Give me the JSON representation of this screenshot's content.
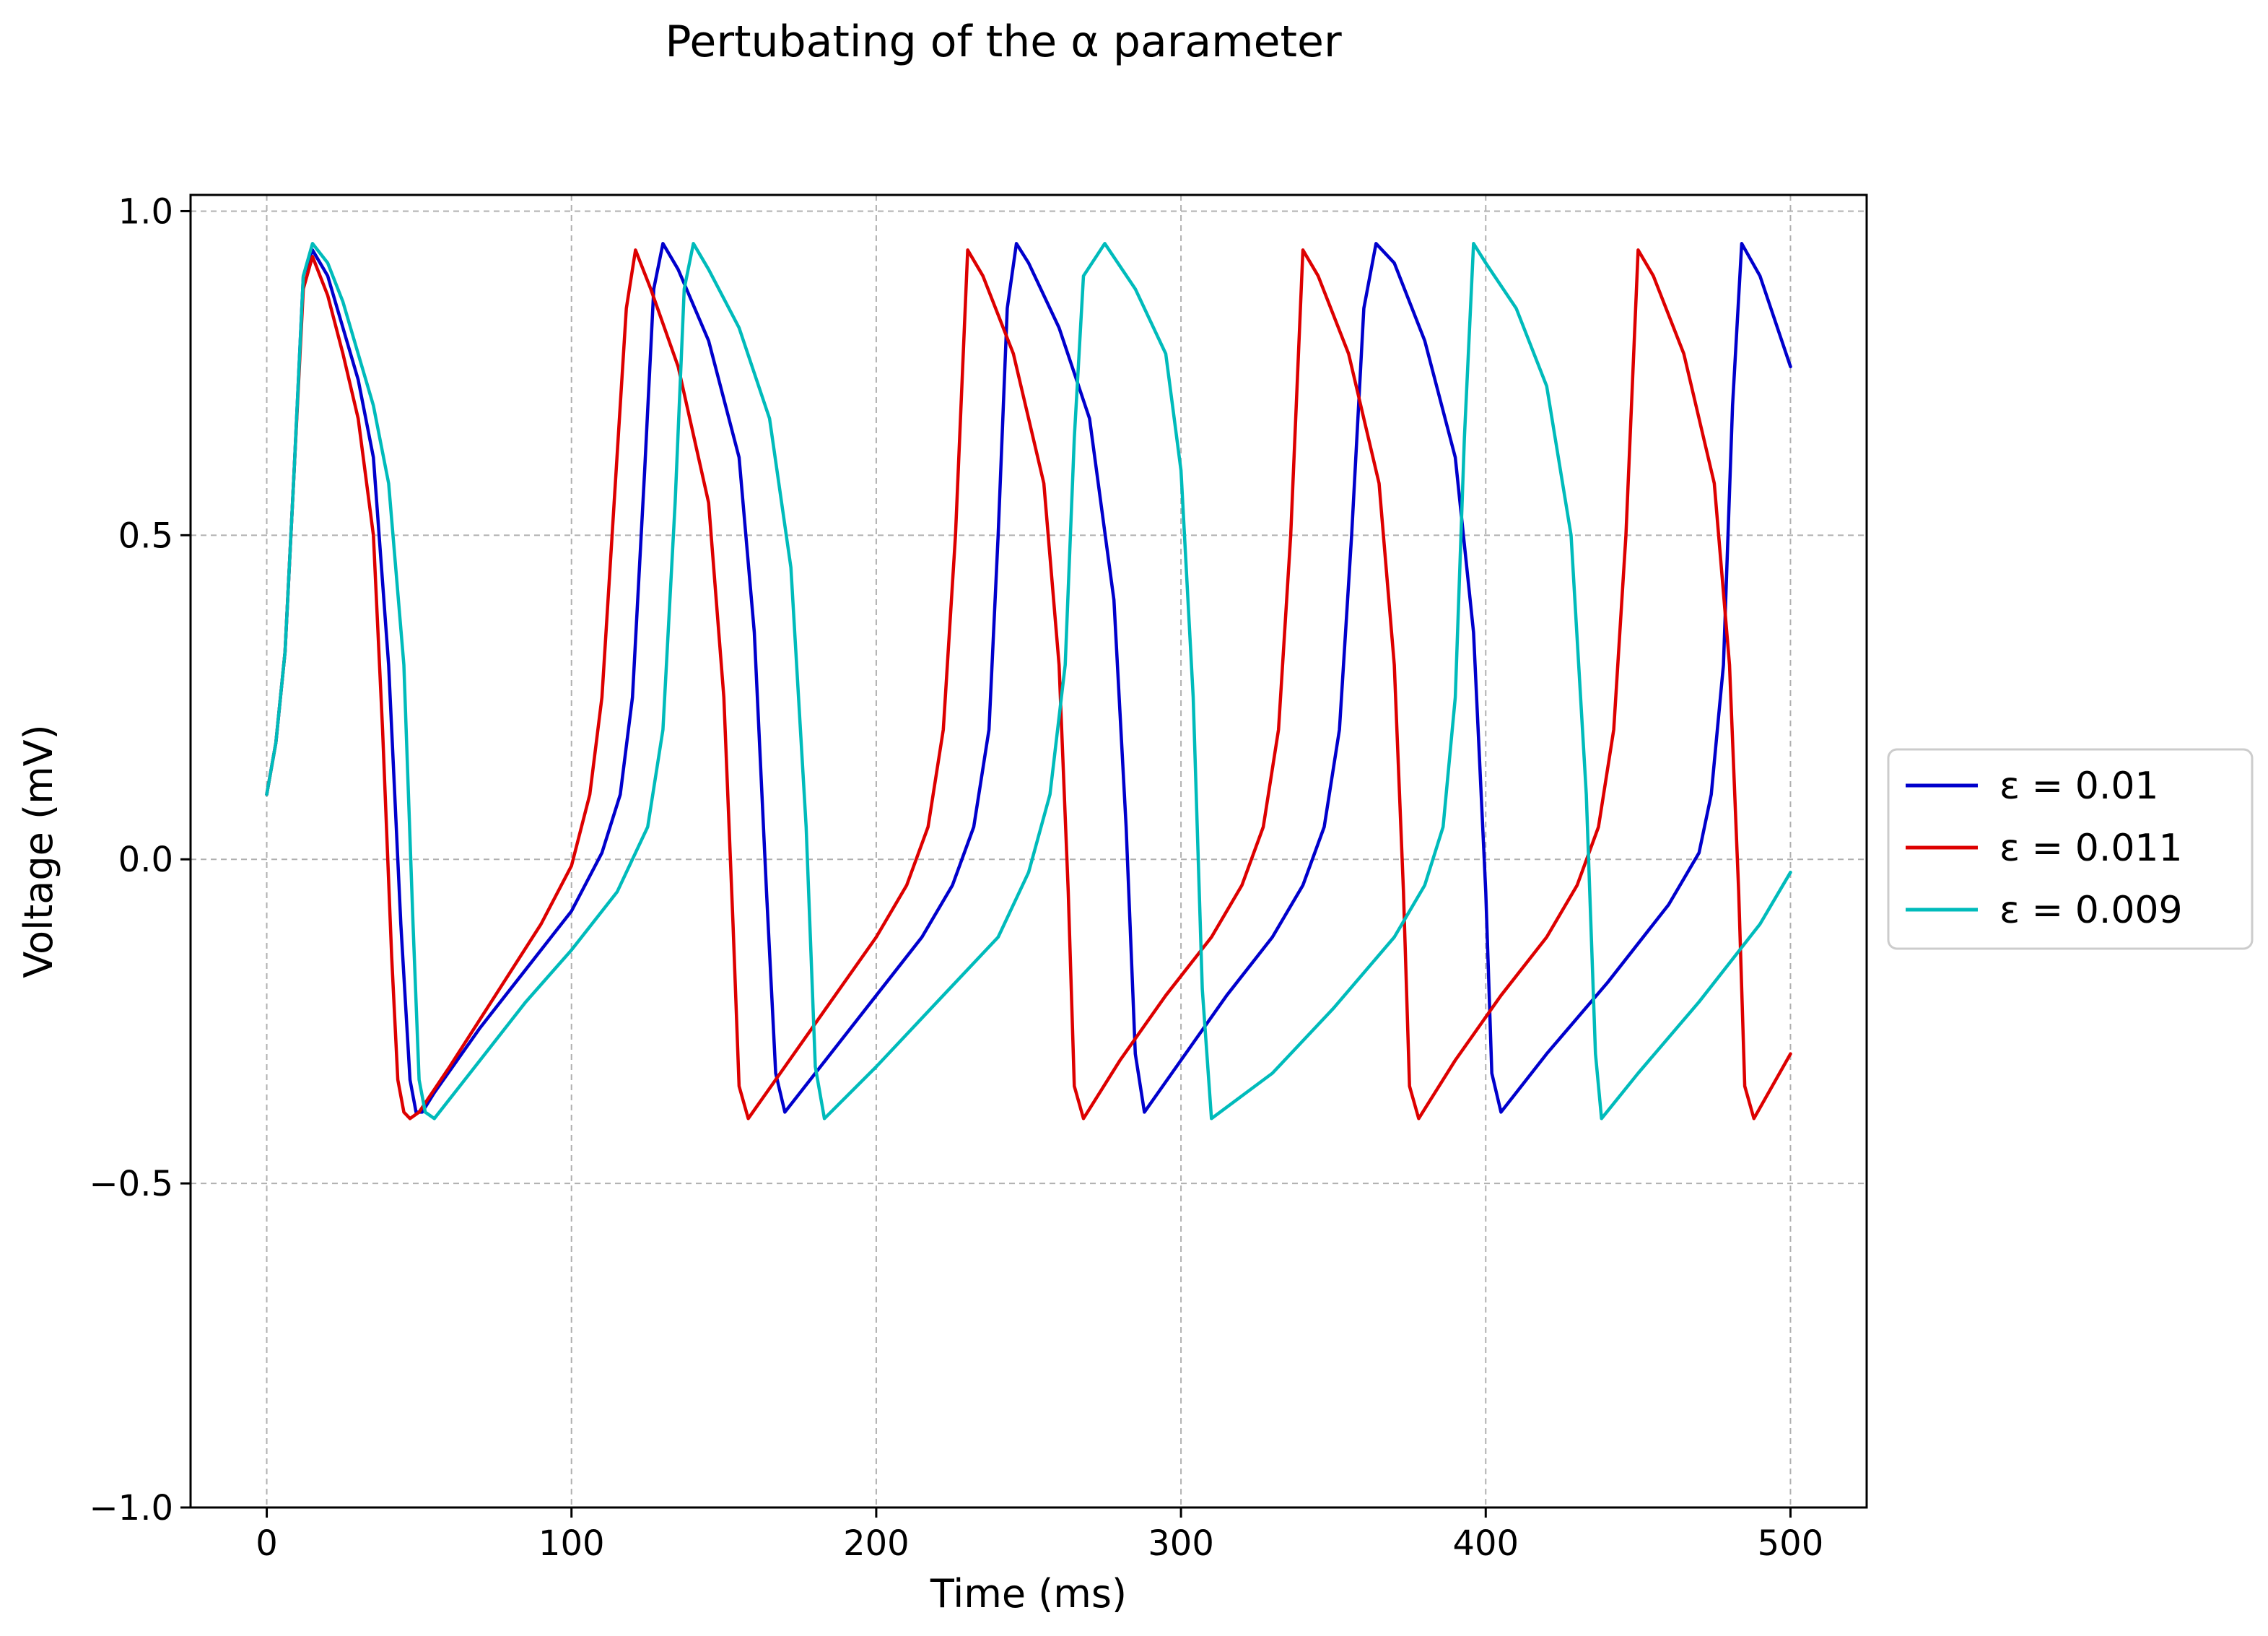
{
  "chart_data": {
    "type": "line",
    "title": "Pertubating of the α parameter",
    "xlabel": "Time (ms)",
    "ylabel": "Voltage (mV)",
    "xlim": [
      -25,
      525
    ],
    "ylim": [
      -1.0,
      1.025
    ],
    "xticks": [
      0,
      100,
      200,
      300,
      400,
      500
    ],
    "xtick_labels": [
      "0",
      "100",
      "200",
      "300",
      "400",
      "500"
    ],
    "yticks": [
      1.0,
      0.5,
      0.0,
      -0.5,
      -1.0
    ],
    "ytick_labels": [
      "1.0",
      "0.5",
      "0.0",
      "−0.5",
      "−1.0"
    ],
    "grid": true,
    "legend_position": "outside-right",
    "series": [
      {
        "name": "ε = 0.01",
        "color": "#0000cc",
        "x": [
          0,
          3,
          6,
          9,
          12,
          15,
          20,
          25,
          30,
          35,
          40,
          44,
          47,
          49,
          51,
          55,
          70,
          85,
          100,
          110,
          116,
          120,
          124,
          127,
          130,
          135,
          145,
          155,
          160,
          164,
          167,
          170,
          185,
          200,
          215,
          225,
          232,
          237,
          240,
          243,
          246,
          250,
          260,
          270,
          278,
          282,
          285,
          288,
          300,
          315,
          330,
          340,
          347,
          352,
          356,
          360,
          364,
          370,
          380,
          390,
          396,
          400,
          402,
          405,
          420,
          440,
          460,
          470,
          474,
          478,
          481,
          484,
          490,
          500
        ],
        "values": [
          0.1,
          0.18,
          0.32,
          0.6,
          0.9,
          0.94,
          0.9,
          0.82,
          0.74,
          0.62,
          0.3,
          -0.1,
          -0.34,
          -0.39,
          -0.39,
          -0.36,
          -0.26,
          -0.17,
          -0.08,
          0.01,
          0.1,
          0.25,
          0.6,
          0.88,
          0.95,
          0.91,
          0.8,
          0.62,
          0.35,
          -0.05,
          -0.33,
          -0.39,
          -0.3,
          -0.21,
          -0.12,
          -0.04,
          0.05,
          0.2,
          0.5,
          0.85,
          0.95,
          0.92,
          0.82,
          0.68,
          0.4,
          0.05,
          -0.3,
          -0.39,
          -0.31,
          -0.21,
          -0.12,
          -0.04,
          0.05,
          0.2,
          0.5,
          0.85,
          0.95,
          0.92,
          0.8,
          0.62,
          0.35,
          -0.05,
          -0.33,
          -0.39,
          -0.3,
          -0.19,
          -0.07,
          0.01,
          0.1,
          0.3,
          0.7,
          0.95,
          0.9,
          0.76
        ]
      },
      {
        "name": "ε = 0.011",
        "color": "#dd0000",
        "x": [
          0,
          3,
          6,
          9,
          12,
          15,
          20,
          25,
          30,
          35,
          38,
          41,
          43,
          45,
          47,
          50,
          60,
          75,
          90,
          100,
          106,
          110,
          114,
          118,
          121,
          126,
          135,
          145,
          150,
          153,
          155,
          158,
          170,
          185,
          200,
          210,
          217,
          222,
          226,
          230,
          235,
          245,
          255,
          260,
          263,
          265,
          268,
          280,
          295,
          310,
          320,
          327,
          332,
          336,
          340,
          345,
          355,
          365,
          370,
          373,
          375,
          378,
          390,
          405,
          420,
          430,
          437,
          442,
          446,
          450,
          455,
          465,
          475,
          480,
          483,
          485,
          488,
          500
        ],
        "values": [
          0.1,
          0.18,
          0.32,
          0.6,
          0.88,
          0.93,
          0.87,
          0.78,
          0.68,
          0.5,
          0.2,
          -0.15,
          -0.34,
          -0.39,
          -0.4,
          -0.39,
          -0.32,
          -0.21,
          -0.1,
          -0.01,
          0.1,
          0.25,
          0.55,
          0.85,
          0.94,
          0.88,
          0.76,
          0.55,
          0.25,
          -0.1,
          -0.35,
          -0.4,
          -0.32,
          -0.22,
          -0.12,
          -0.04,
          0.05,
          0.2,
          0.5,
          0.94,
          0.9,
          0.78,
          0.58,
          0.3,
          -0.05,
          -0.35,
          -0.4,
          -0.31,
          -0.21,
          -0.12,
          -0.04,
          0.05,
          0.2,
          0.5,
          0.94,
          0.9,
          0.78,
          0.58,
          0.3,
          -0.05,
          -0.35,
          -0.4,
          -0.31,
          -0.21,
          -0.12,
          -0.04,
          0.05,
          0.2,
          0.5,
          0.94,
          0.9,
          0.78,
          0.58,
          0.3,
          -0.05,
          -0.35,
          -0.4,
          -0.3
        ]
      },
      {
        "name": "ε = 0.009",
        "color": "#00bbbb",
        "x": [
          0,
          3,
          6,
          9,
          12,
          15,
          20,
          25,
          30,
          35,
          40,
          45,
          48,
          50,
          52,
          55,
          70,
          85,
          100,
          115,
          125,
          130,
          134,
          137,
          140,
          145,
          155,
          165,
          172,
          177,
          180,
          183,
          200,
          220,
          240,
          250,
          257,
          262,
          265,
          268,
          275,
          285,
          295,
          300,
          304,
          307,
          310,
          330,
          350,
          370,
          380,
          386,
          390,
          393,
          396,
          400,
          410,
          420,
          428,
          433,
          436,
          438,
          450,
          470,
          490,
          500
        ],
        "values": [
          0.1,
          0.18,
          0.32,
          0.6,
          0.9,
          0.95,
          0.92,
          0.86,
          0.78,
          0.7,
          0.58,
          0.3,
          -0.1,
          -0.34,
          -0.39,
          -0.4,
          -0.31,
          -0.22,
          -0.14,
          -0.05,
          0.05,
          0.2,
          0.55,
          0.88,
          0.95,
          0.91,
          0.82,
          0.68,
          0.45,
          0.05,
          -0.32,
          -0.4,
          -0.32,
          -0.22,
          -0.12,
          -0.02,
          0.1,
          0.3,
          0.65,
          0.9,
          0.95,
          0.88,
          0.78,
          0.6,
          0.25,
          -0.2,
          -0.4,
          -0.33,
          -0.23,
          -0.12,
          -0.04,
          0.05,
          0.25,
          0.65,
          0.95,
          0.92,
          0.85,
          0.73,
          0.5,
          0.1,
          -0.3,
          -0.4,
          -0.33,
          -0.22,
          -0.1,
          -0.02
        ]
      }
    ]
  }
}
